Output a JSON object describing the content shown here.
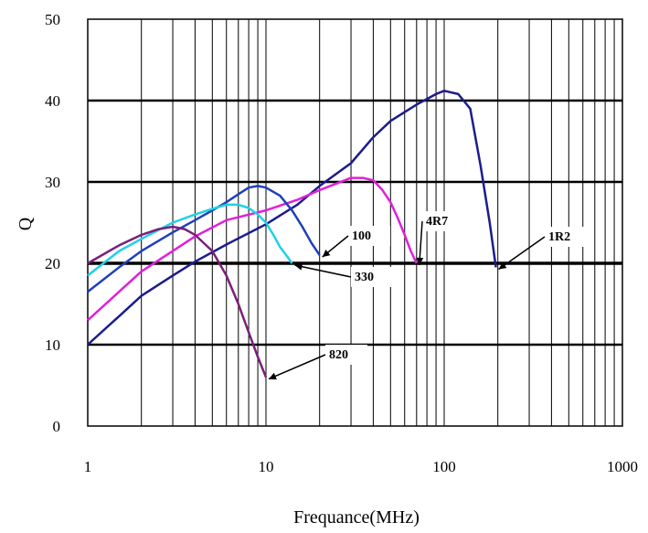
{
  "chart_data": {
    "type": "line",
    "xlabel": "Frequance(MHz)",
    "ylabel": "Q",
    "xscale": "log",
    "xlim": [
      1,
      1000
    ],
    "ylim": [
      0,
      50
    ],
    "x_ticks": [
      1,
      10,
      100,
      1000
    ],
    "y_ticks": [
      0,
      10,
      20,
      30,
      40,
      50
    ],
    "x_tick_labels": [
      "1",
      "10",
      "100",
      "1000"
    ],
    "y_tick_labels": [
      "0",
      "10",
      "20",
      "30",
      "40",
      "50"
    ],
    "grid": "x minor log lines, y major lines",
    "legend": "none",
    "series": [
      {
        "name": "1R2",
        "color": "#1c1c8c",
        "x": [
          1,
          1.5,
          2,
          3,
          4,
          6,
          10,
          15,
          20,
          30,
          40,
          50,
          70,
          90,
          100,
          120,
          140,
          160,
          180,
          195
        ],
        "y": [
          10,
          13.5,
          16,
          18.5,
          20.2,
          22.3,
          24.8,
          27.2,
          29.5,
          32.3,
          35.5,
          37.5,
          39.5,
          40.8,
          41.2,
          40.8,
          39.0,
          32.0,
          25.0,
          19.5
        ]
      },
      {
        "name": "4R7",
        "color": "#e020d8",
        "x": [
          1,
          1.5,
          2,
          3,
          4,
          6,
          10,
          15,
          20,
          30,
          35,
          40,
          45,
          50,
          55,
          60,
          65,
          70
        ],
        "y": [
          13,
          16.5,
          19,
          21.5,
          23.3,
          25.3,
          26.5,
          27.8,
          29,
          30.5,
          30.5,
          30.2,
          29.0,
          27.5,
          25.5,
          23.5,
          21.5,
          20
        ]
      },
      {
        "name": "100",
        "color": "#1f3fbf",
        "x": [
          1,
          1.5,
          2,
          3,
          4,
          5,
          6,
          7,
          8,
          9,
          10,
          12,
          14,
          16,
          18,
          20
        ],
        "y": [
          16.5,
          19.5,
          21.5,
          23.8,
          25.3,
          26.5,
          27.5,
          28.5,
          29.3,
          29.5,
          29.3,
          28.3,
          26.5,
          24.5,
          22.5,
          21
        ]
      },
      {
        "name": "330",
        "color": "#20d0e8",
        "x": [
          1,
          1.5,
          2,
          3,
          4,
          5,
          6,
          7,
          8,
          9,
          10,
          11,
          12,
          13,
          14
        ],
        "y": [
          18.5,
          21.5,
          23,
          25,
          26,
          26.7,
          27.2,
          27.2,
          26.8,
          26.0,
          25.0,
          23.5,
          22.0,
          21.0,
          20.0
        ]
      },
      {
        "name": "820",
        "color": "#7a1f7a",
        "x": [
          1,
          1.5,
          2,
          2.5,
          3,
          3.5,
          4,
          5,
          6,
          7,
          8,
          9,
          10
        ],
        "y": [
          20,
          22.2,
          23.5,
          24.2,
          24.5,
          24.2,
          23.5,
          21.5,
          18.5,
          15.0,
          11.5,
          8.5,
          6.0
        ]
      }
    ],
    "annotations": [
      {
        "text": "1R2",
        "series": "1R2"
      },
      {
        "text": "4R7",
        "series": "4R7"
      },
      {
        "text": "100",
        "series": "100"
      },
      {
        "text": "330",
        "series": "330"
      },
      {
        "text": "820",
        "series": "820"
      }
    ]
  }
}
